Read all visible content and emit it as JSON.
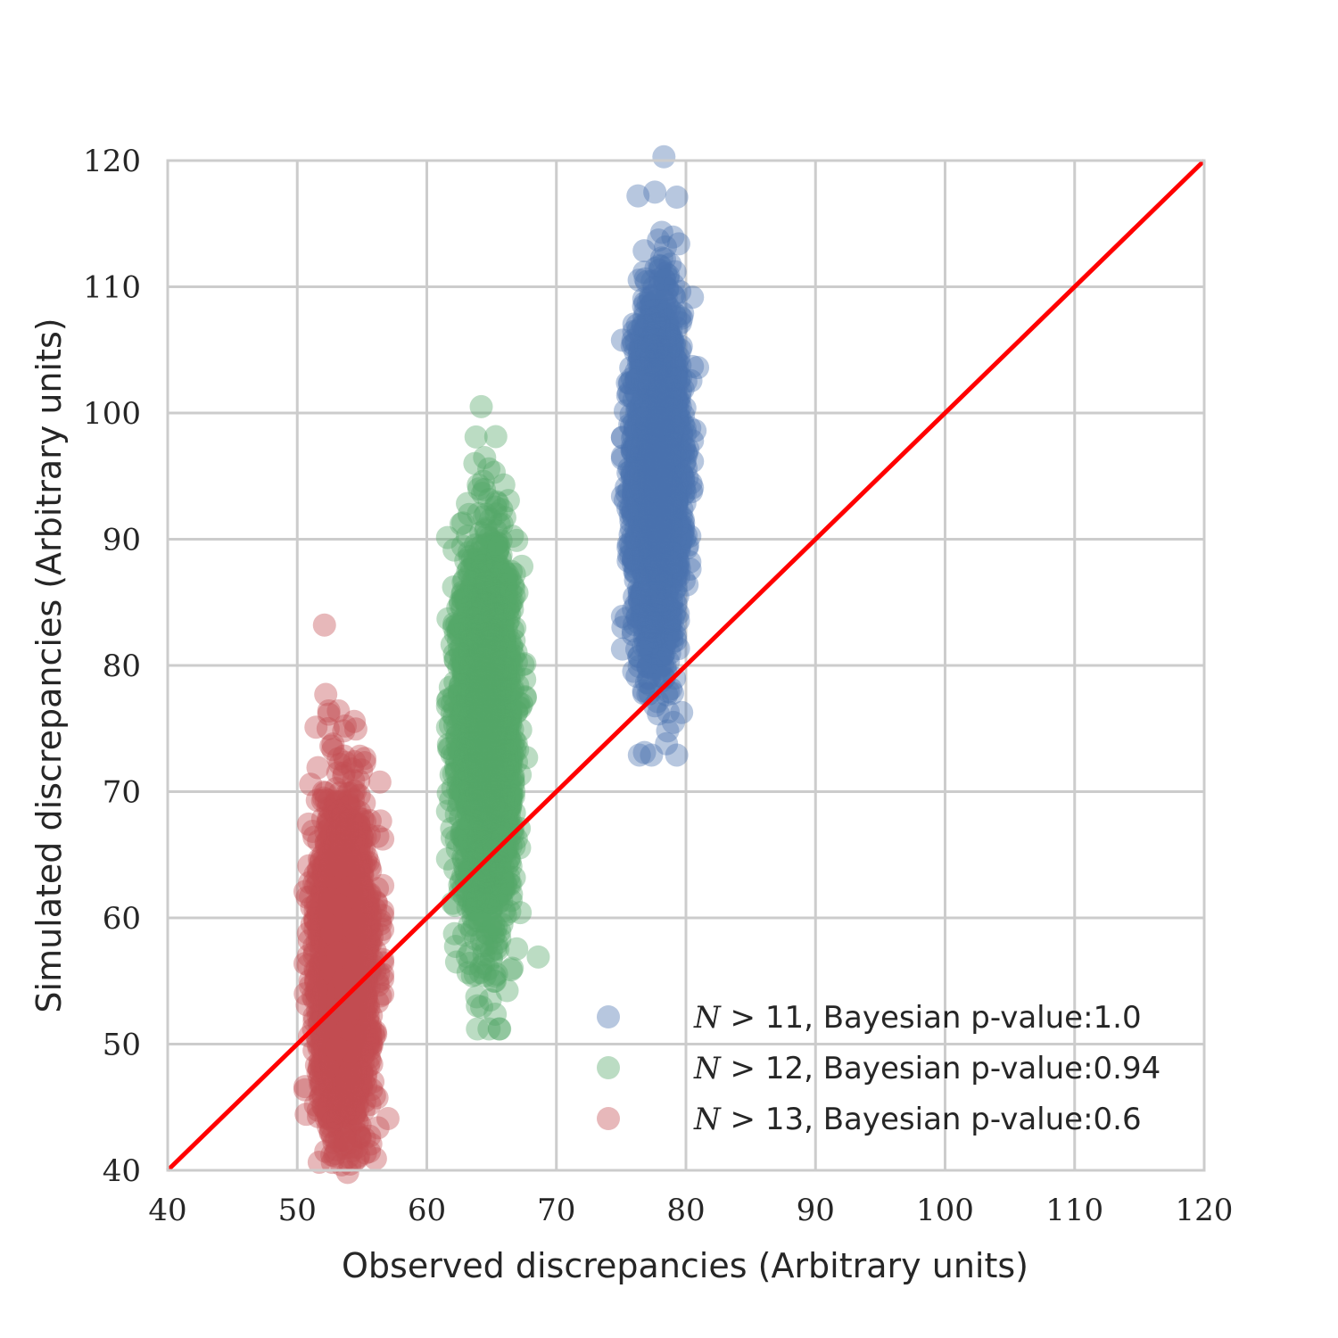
{
  "chart_data": {
    "type": "scatter",
    "xlabel": "Observed discrepancies (Arbitrary units)",
    "ylabel": "Simulated discrepancies (Arbitrary units)",
    "xlim": [
      40,
      120
    ],
    "ylim": [
      40,
      120
    ],
    "xticks": [
      "40",
      "50",
      "60",
      "70",
      "80",
      "90",
      "100",
      "110",
      "120"
    ],
    "yticks": [
      "40",
      "50",
      "60",
      "70",
      "80",
      "90",
      "100",
      "110",
      "120"
    ],
    "grid": true,
    "legend_position": "lower-right",
    "series": [
      {
        "name": "N > 11, Bayesian p-value:1.0",
        "legend_var": "N",
        "legend_rest": " > 11, Bayesian p-value:1.0",
        "color": "#4c72b0",
        "x_center": 77.8,
        "x_spread": 0.9,
        "y_center": 95.0,
        "y_spread": 6.5,
        "count": 3000,
        "outliers": [
          [
            78.3,
            120.3
          ],
          [
            76.3,
            117.2
          ],
          [
            77.6,
            117.5
          ],
          [
            76.8,
            73.1
          ],
          [
            78.5,
            73.8
          ],
          [
            80.9,
            103.6
          ],
          [
            80.7,
            98.6
          ],
          [
            80.3,
            88.2
          ]
        ]
      },
      {
        "name": "N > 12, Bayesian p-value:0.94",
        "legend_var": "N",
        "legend_rest": " > 12, Bayesian p-value:0.94",
        "color": "#55a868",
        "x_center": 64.6,
        "x_spread": 1.0,
        "y_center": 75.0,
        "y_spread": 7.0,
        "count": 3000,
        "outliers": [
          [
            64.2,
            100.5
          ],
          [
            63.8,
            98.1
          ],
          [
            65.2,
            95.3
          ],
          [
            68.6,
            56.9
          ],
          [
            64.9,
            53.5
          ],
          [
            67.7,
            72.7
          ],
          [
            62.3,
            56.5
          ]
        ]
      },
      {
        "name": "N > 13, Bayesian p-value:0.6",
        "legend_var": "N",
        "legend_rest": " > 13, Bayesian p-value:0.6",
        "color": "#c44e52",
        "x_center": 53.6,
        "x_spread": 1.0,
        "y_center": 56.0,
        "y_spread": 6.0,
        "count": 3000,
        "outliers": [
          [
            52.1,
            83.2
          ],
          [
            52.2,
            77.7
          ],
          [
            53.7,
            75.2
          ],
          [
            57.0,
            44.1
          ],
          [
            51.6,
            71.9
          ],
          [
            55.2,
            72.3
          ],
          [
            56.4,
            59.8
          ],
          [
            52.2,
            41.5
          ]
        ]
      }
    ],
    "reference_line": {
      "from": [
        40,
        40
      ],
      "to": [
        120,
        120
      ],
      "color": "#ff0000"
    }
  }
}
